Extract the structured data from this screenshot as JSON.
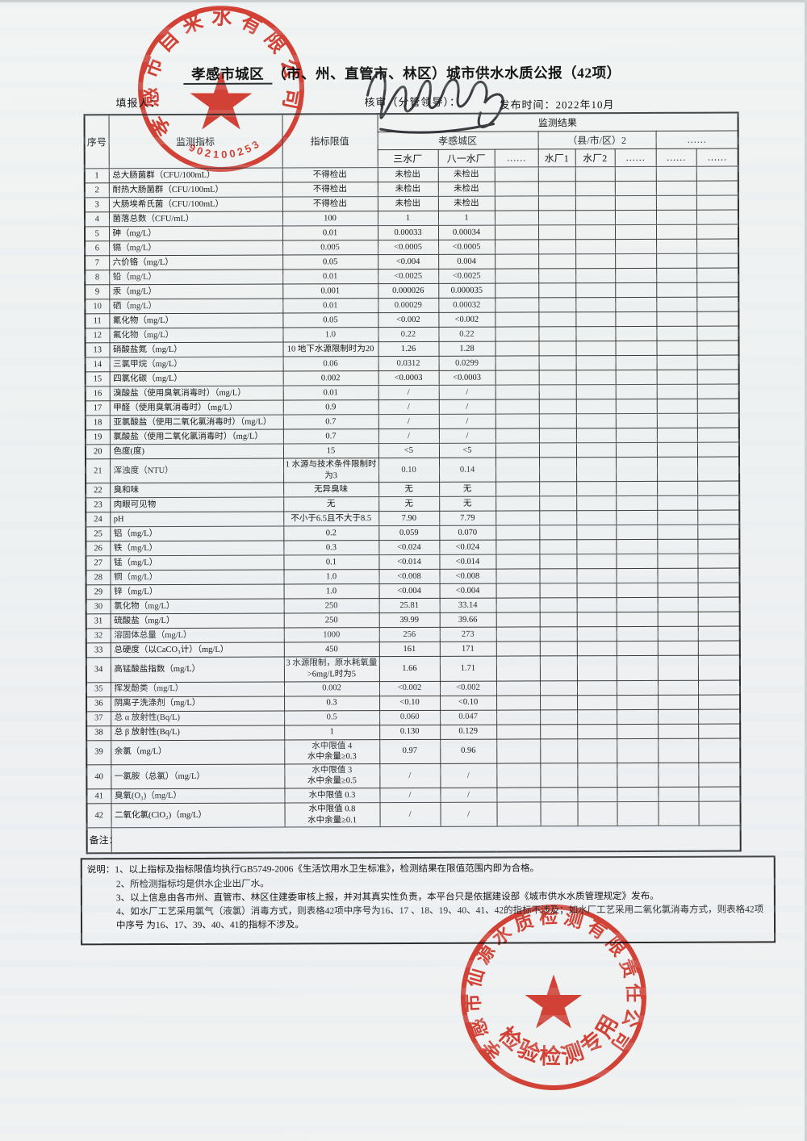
{
  "header": {
    "title_region": "孝感市城区",
    "title_rest": "（市、州、直管市、林区）城市供水水质公报（42项）",
    "filler_label": "填报人：",
    "reviewer_label": "核审（分管领导）：",
    "publish_time": "发布时间：2022年10月"
  },
  "table": {
    "col_no": "序号",
    "col_indicator": "监测指标",
    "col_limit": "指标限值",
    "result_header": "监测结果",
    "groups": [
      "孝感城区",
      "（县/市/区）2",
      "……"
    ],
    "plants": [
      "三水厂",
      "八一水厂",
      "……",
      "水厂1",
      "水厂2",
      "……",
      "……",
      "……"
    ],
    "remark_label": "备注：",
    "rows": [
      {
        "no": "1",
        "indicator": "总大肠菌群（CFU/100mL）",
        "limit": "不得检出",
        "v1": "未检出",
        "v2": "未检出"
      },
      {
        "no": "2",
        "indicator": "耐热大肠菌群（CFU/100mL）",
        "limit": "不得检出",
        "v1": "未检出",
        "v2": "未检出"
      },
      {
        "no": "3",
        "indicator": "大肠埃希氏菌（CFU/100mL）",
        "limit": "不得检出",
        "v1": "未检出",
        "v2": "未检出"
      },
      {
        "no": "4",
        "indicator": "菌落总数（CFU/mL）",
        "limit": "100",
        "v1": "1",
        "v2": "1"
      },
      {
        "no": "5",
        "indicator": "砷（mg/L）",
        "limit": "0.01",
        "v1": "0.00033",
        "v2": "0.00034"
      },
      {
        "no": "6",
        "indicator": "镉（mg/L）",
        "limit": "0.005",
        "v1": "<0.0005",
        "v2": "<0.0005"
      },
      {
        "no": "7",
        "indicator": "六价铬（mg/L）",
        "limit": "0.05",
        "v1": "<0.004",
        "v2": "0.004"
      },
      {
        "no": "8",
        "indicator": "铅（mg/L）",
        "limit": "0.01",
        "v1": "<0.0025",
        "v2": "<0.0025"
      },
      {
        "no": "9",
        "indicator": "汞（mg/L）",
        "limit": "0.001",
        "v1": "0.000026",
        "v2": "0.000035"
      },
      {
        "no": "10",
        "indicator": "硒（mg/L）",
        "limit": "0.01",
        "v1": "0.00029",
        "v2": "0.00032"
      },
      {
        "no": "11",
        "indicator": "氰化物（mg/L）",
        "limit": "0.05",
        "v1": "<0.002",
        "v2": "<0.002"
      },
      {
        "no": "12",
        "indicator": "氟化物（mg/L）",
        "limit": "1.0",
        "v1": "0.22",
        "v2": "0.22"
      },
      {
        "no": "13",
        "indicator": "硝酸盐氮（mg/L）",
        "limit": "10  地下水源限制时为20",
        "v1": "1.26",
        "v2": "1.28"
      },
      {
        "no": "14",
        "indicator": "三氯甲烷（mg/L）",
        "limit": "0.06",
        "v1": "0.0312",
        "v2": "0.0299"
      },
      {
        "no": "15",
        "indicator": "四氯化碳（mg/L）",
        "limit": "0.002",
        "v1": "<0.0003",
        "v2": "<0.0003"
      },
      {
        "no": "16",
        "indicator": "溴酸盐（使用臭氧消毒时）（mg/L）",
        "limit": "0.01",
        "v1": "/",
        "v2": "/"
      },
      {
        "no": "17",
        "indicator": "甲醛（使用臭氧消毒时）（mg/L）",
        "limit": "0.9",
        "v1": "/",
        "v2": "/"
      },
      {
        "no": "18",
        "indicator": "亚氯酸盐（使用二氧化氯消毒时）（mg/L）",
        "limit": "0.7",
        "v1": "/",
        "v2": "/"
      },
      {
        "no": "19",
        "indicator": "氯酸盐（使用二氧化氯消毒时）（mg/L）",
        "limit": "0.7",
        "v1": "/",
        "v2": "/"
      },
      {
        "no": "20",
        "indicator": "色度(度)",
        "limit": "15",
        "v1": "<5",
        "v2": "<5"
      },
      {
        "no": "21",
        "indicator": "浑浊度（NTU）",
        "limit": "1  水源与技术条件限制时为3",
        "v1": "0.10",
        "v2": "0.14"
      },
      {
        "no": "22",
        "indicator": "臭和味",
        "limit": "无异臭味",
        "v1": "无",
        "v2": "无"
      },
      {
        "no": "23",
        "indicator": "肉眼可见物",
        "limit": "无",
        "v1": "无",
        "v2": "无"
      },
      {
        "no": "24",
        "indicator": "pH",
        "limit": "不小于6.5且不大于8.5",
        "v1": "7.90",
        "v2": "7.79"
      },
      {
        "no": "25",
        "indicator": "铝（mg/L）",
        "limit": "0.2",
        "v1": "0.059",
        "v2": "0.070"
      },
      {
        "no": "26",
        "indicator": "铁（mg/L）",
        "limit": "0.3",
        "v1": "<0.024",
        "v2": "<0.024"
      },
      {
        "no": "27",
        "indicator": "锰（mg/L）",
        "limit": "0.1",
        "v1": "<0.014",
        "v2": "<0.014"
      },
      {
        "no": "28",
        "indicator": "铜（mg/L）",
        "limit": "1.0",
        "v1": "<0.008",
        "v2": "<0.008"
      },
      {
        "no": "29",
        "indicator": "锌（mg/L）",
        "limit": "1.0",
        "v1": "<0.004",
        "v2": "<0.004"
      },
      {
        "no": "30",
        "indicator": "氯化物（mg/L）",
        "limit": "250",
        "v1": "25.81",
        "v2": "33.14"
      },
      {
        "no": "31",
        "indicator": "硫酸盐（mg/L）",
        "limit": "250",
        "v1": "39.99",
        "v2": "39.66"
      },
      {
        "no": "32",
        "indicator": "溶固体总量（mg/L）",
        "limit": "1000",
        "v1": "256",
        "v2": "273"
      },
      {
        "no": "33",
        "indicator": "总硬度（以CaCO₃计）（mg/L）",
        "limit": "450",
        "v1": "161",
        "v2": "171"
      },
      {
        "no": "34",
        "indicator": "高锰酸盐指数（mg/L）",
        "limit": "3  水源限制，原水耗氧量>6mg/L时为5",
        "v1": "1.66",
        "v2": "1.71"
      },
      {
        "no": "35",
        "indicator": "挥发酚类（mg/L）",
        "limit": "0.002",
        "v1": "<0.002",
        "v2": "<0.002"
      },
      {
        "no": "36",
        "indicator": "阴离子洗涤剂（mg/L）",
        "limit": "0.3",
        "v1": "<0.10",
        "v2": "<0.10"
      },
      {
        "no": "37",
        "indicator": "总 α 放射性(Bq/L)",
        "limit": "0.5",
        "v1": "0.060",
        "v2": "0.047"
      },
      {
        "no": "38",
        "indicator": "总 β 放射性(Bq/L)",
        "limit": "1",
        "v1": "0.130",
        "v2": "0.129"
      },
      {
        "no": "39",
        "indicator": "余氯（mg/L）",
        "limit": "水中限值 4\n水中余量≥0.3",
        "v1": "0.97",
        "v2": "0.96"
      },
      {
        "no": "40",
        "indicator": "一氯胺（总氯）（mg/L）",
        "limit": "水中限值 3\n水中余量≥0.5",
        "v1": "/",
        "v2": "/"
      },
      {
        "no": "41",
        "indicator": "臭氧(O₃)（mg/L）",
        "limit": "水中限值 0.3",
        "v1": "/",
        "v2": "/"
      },
      {
        "no": "42",
        "indicator": "二氧化氯(ClO₂)（mg/L）",
        "limit": "水中限值 0.8\n水中余量≥0.1",
        "v1": "/",
        "v2": "/"
      }
    ]
  },
  "notes": {
    "lines": [
      "说明：1、以上指标及指标限值均执行GB5749-2006《生活饮用水卫生标准》，检测结果在限值范围内即为合格。",
      "2、所检测指标均是供水企业出厂水。",
      "3、以上信息由各市州、直管市、林区住建委审核上报，并对其真实性负责，本平台只是依据建设部《城市供水水质管理规定》发布。",
      "4、如水厂工艺采用氯气（液氯）消毒方式，则表格42项中序号为16、17 、18、19、40、41、42的指标不涉及；如水厂工艺采用二氧化氯消毒方式，则表格42项中序号 为16、17、39、40、41的指标不涉及。"
    ]
  },
  "stamps": {
    "color": "#dd3529",
    "top": {
      "company": "孝感市自来水有限公司",
      "code": "90210025321"
    },
    "bottom": {
      "company": "孝感市仙源水质检测有限责任公司",
      "inner": "检验检测专用章"
    }
  },
  "signature": {
    "ink_color": "#23232a"
  }
}
